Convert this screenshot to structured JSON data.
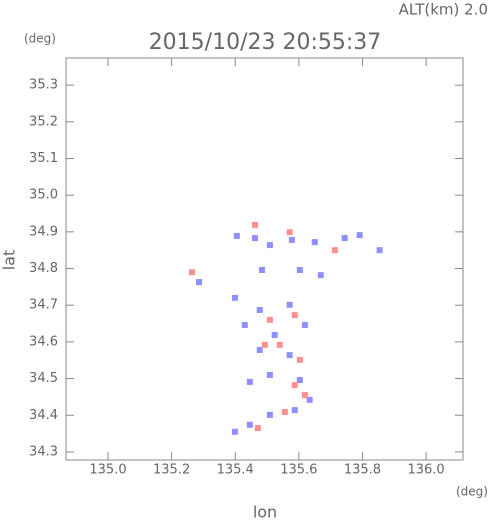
{
  "chart_data": {
    "type": "scatter",
    "subtitle": "ALT(km) 2.0",
    "title": "2015/10/23 20:55:37",
    "y_unit": "(deg)",
    "x_unit": "(deg)",
    "y_label": "lat",
    "x_label": "lon",
    "xlim": [
      134.868,
      136.116
    ],
    "ylim": [
      34.278,
      35.374
    ],
    "xticks": [
      {
        "value": 135,
        "label": "135.0"
      },
      135.2,
      135.4,
      135.6,
      135.8,
      {
        "value": 136,
        "label": "136.0"
      }
    ],
    "yticks": [
      34.3,
      34.4,
      34.5,
      34.6,
      34.7,
      34.8,
      34.9,
      {
        "value": 35,
        "label": "35.0"
      },
      35.1,
      35.2,
      35.3
    ],
    "series": [
      {
        "color": "#7b7bff",
        "x": [
          135.405,
          135.462,
          135.509,
          135.578,
          135.65,
          135.744,
          135.791,
          135.484,
          135.603,
          135.669,
          135.286,
          135.399,
          135.477,
          135.571,
          135.43,
          135.524,
          135.619,
          135.477,
          135.571,
          135.509,
          135.603,
          135.446,
          135.634,
          135.587,
          135.509,
          135.446,
          135.399,
          135.854
        ],
        "values": [
          34.889,
          34.883,
          34.864,
          34.878,
          34.872,
          34.883,
          34.891,
          34.796,
          34.796,
          34.782,
          34.763,
          34.72,
          34.687,
          34.701,
          34.646,
          34.619,
          34.646,
          34.578,
          34.564,
          34.51,
          34.496,
          34.491,
          34.442,
          34.414,
          34.401,
          34.374,
          34.355,
          34.85
        ]
      },
      {
        "color": "#ff7b7b",
        "x": [
          135.462,
          135.571,
          135.713,
          135.264,
          135.509,
          135.587,
          135.493,
          135.603,
          135.54,
          135.587,
          135.556,
          135.471,
          135.619
        ],
        "values": [
          34.919,
          34.899,
          34.85,
          34.79,
          34.66,
          34.673,
          34.592,
          34.551,
          34.592,
          34.482,
          34.409,
          34.365,
          34.455
        ]
      }
    ]
  }
}
